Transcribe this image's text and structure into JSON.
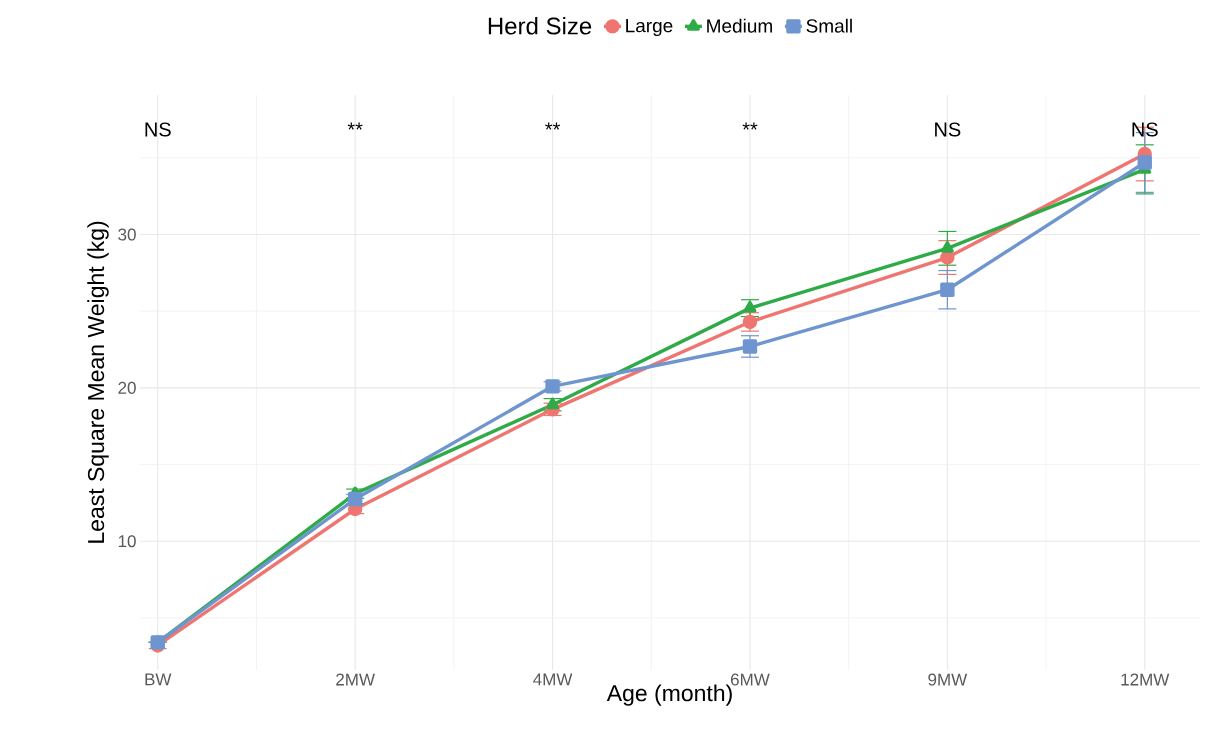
{
  "chart_data": {
    "type": "line",
    "xlabel": "Age (month)",
    "ylabel": "Least Square Mean Weight (kg)",
    "legend_title": "Herd Size",
    "categories": [
      "BW",
      "2MW",
      "4MW",
      "6MW",
      "9MW",
      "12MW"
    ],
    "series": [
      {
        "name": "Large",
        "color": "#ee7570",
        "marker": "circle",
        "values": [
          3.2,
          12.1,
          18.6,
          24.3,
          28.5,
          35.25
        ],
        "errors": [
          0.2,
          0.3,
          0.4,
          0.6,
          1.1,
          1.75
        ]
      },
      {
        "name": "Medium",
        "color": "#2eaa47",
        "marker": "triangle",
        "values": [
          3.4,
          13.1,
          18.9,
          25.2,
          29.1,
          34.25
        ],
        "errors": [
          null,
          0.3,
          0.4,
          0.55,
          1.1,
          1.6
        ]
      },
      {
        "name": "Small",
        "color": "#6f95d0",
        "marker": "square",
        "values": [
          3.4,
          12.75,
          20.1,
          22.7,
          26.4,
          34.7
        ],
        "errors": [
          null,
          0.3,
          0.3,
          0.7,
          1.25,
          1.95
        ]
      }
    ],
    "ylim": [
      1.6,
      39.1
    ],
    "yticks": [
      10,
      20,
      30
    ],
    "grid": true,
    "legend": "top",
    "line_style": "solid",
    "annotations": [
      "NS",
      "**",
      "**",
      "**",
      "NS",
      "NS"
    ]
  }
}
